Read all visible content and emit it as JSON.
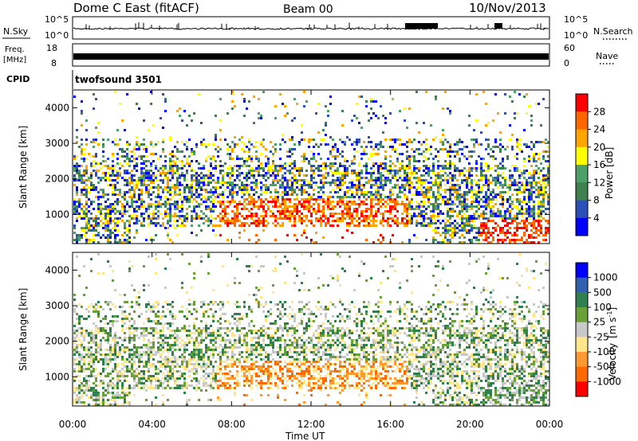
{
  "header": {
    "station": "Dome C East (fitACF)",
    "beam": "Beam 00",
    "date": "10/Nov/2013"
  },
  "colors": {
    "power_scale": [
      "#0000ff",
      "#2d4fb8",
      "#3f7f50",
      "#4ea06a",
      "#ffff00",
      "#ffa500",
      "#ff6600",
      "#ff0000"
    ],
    "velocity_scale": [
      "#ff0000",
      "#ff6a00",
      "#ff9a33",
      "#ffe68a",
      "#c8c8c8",
      "#6aa03a",
      "#2f7f4f",
      "#3060b0",
      "#0000ff"
    ]
  },
  "chart_data": [
    {
      "type": "line",
      "name": "noise-sky-search-panel",
      "left_label": "N.Sky",
      "right_label": "N.Search",
      "left_ticks": [
        "10^5",
        "10^0"
      ],
      "right_ticks": [
        "10^5",
        "10^0"
      ],
      "x": [
        "00:00",
        "04:00",
        "08:00",
        "12:00",
        "16:00",
        "20:00",
        "00:00"
      ]
    },
    {
      "type": "line",
      "name": "frequency-nave-panel",
      "left_label": "Freq.",
      "left_unit": "[MHz]",
      "right_label": "Nave",
      "left_ticks": [
        18,
        8
      ],
      "right_ticks": [
        60,
        0
      ]
    },
    {
      "type": "table",
      "name": "cpid-panel",
      "label": "CPID",
      "program": "twofsound 3501"
    },
    {
      "type": "heatmap",
      "name": "power-panel",
      "xlabel": "Time UT",
      "ylabel": "Slant Range [km]",
      "y_ticks": [
        1000,
        2000,
        3000,
        4000
      ],
      "ylim": [
        180,
        4500
      ],
      "x_ticks": [
        "00:00",
        "04:00",
        "08:00",
        "12:00",
        "16:00",
        "20:00",
        "00:00"
      ],
      "colorbar": {
        "label": "Power [dB]",
        "ticks": [
          "4",
          "8",
          "12",
          "16",
          "20",
          "24",
          "28"
        ],
        "range": [
          0,
          32
        ]
      }
    },
    {
      "type": "heatmap",
      "name": "velocity-panel",
      "xlabel": "Time UT",
      "ylabel": "Slant Range [km]",
      "y_ticks": [
        1000,
        2000,
        3000,
        4000
      ],
      "ylim": [
        180,
        4500
      ],
      "x_ticks": [
        "00:00",
        "04:00",
        "08:00",
        "12:00",
        "16:00",
        "20:00",
        "00:00"
      ],
      "colorbar": {
        "label": "Velocity",
        "unit_base": "[m s",
        "unit_exp": "-1",
        "unit_end": "]",
        "ticks": [
          "1000",
          "500",
          "100",
          "25",
          "-25",
          "-100",
          "-500",
          "-1000"
        ]
      }
    }
  ]
}
